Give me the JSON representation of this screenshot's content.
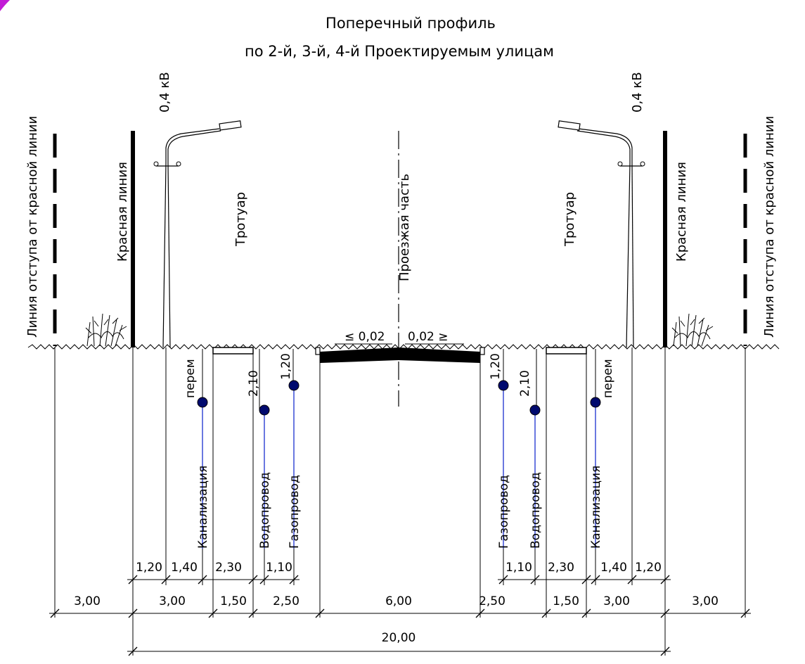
{
  "title": {
    "line1": "Поперечный профиль",
    "line2": "по 2-й, 3-й, 4-й Проектируемым улицам"
  },
  "labels": {
    "setback_left": "Линия отступа от красной линии",
    "setback_right": "Линия отступа от красной линии",
    "red_line_left": "Красная линия",
    "red_line_right": "Красная линия",
    "voltage_left": "0,4 кВ",
    "voltage_right": "0,4 кВ",
    "sidewalk_left": "Тротуар",
    "sidewalk_right": "Тротуар",
    "roadway": "Проезжая часть",
    "slope_left": "≤ 0,02",
    "slope_right": "0,02 ≥"
  },
  "utilities": [
    {
      "name": "Канализация",
      "depth": "перем"
    },
    {
      "name": "Водопровод",
      "depth": "2,10"
    },
    {
      "name": "Газопровод",
      "depth": "1,20"
    },
    {
      "name": "Газопровод",
      "depth": "1,20"
    },
    {
      "name": "Водопровод",
      "depth": "2,10"
    },
    {
      "name": "Канализация",
      "depth": "перем"
    }
  ],
  "dimensions": {
    "row1": [
      "1,20",
      "1,40",
      "2,30",
      "1,10",
      "1,10",
      "2,30",
      "1,40",
      "1,20"
    ],
    "row2": [
      "3,00",
      "3,00",
      "1,50",
      "2,50",
      "6,00",
      "2,50",
      "1,50",
      "3,00",
      "3,00"
    ],
    "total": "20,00"
  },
  "colors": {
    "lines": "#000000",
    "utility_lines": "#1a2fd0",
    "utility_dots": "#000a6e",
    "corner_accent": "#c21bd6"
  }
}
